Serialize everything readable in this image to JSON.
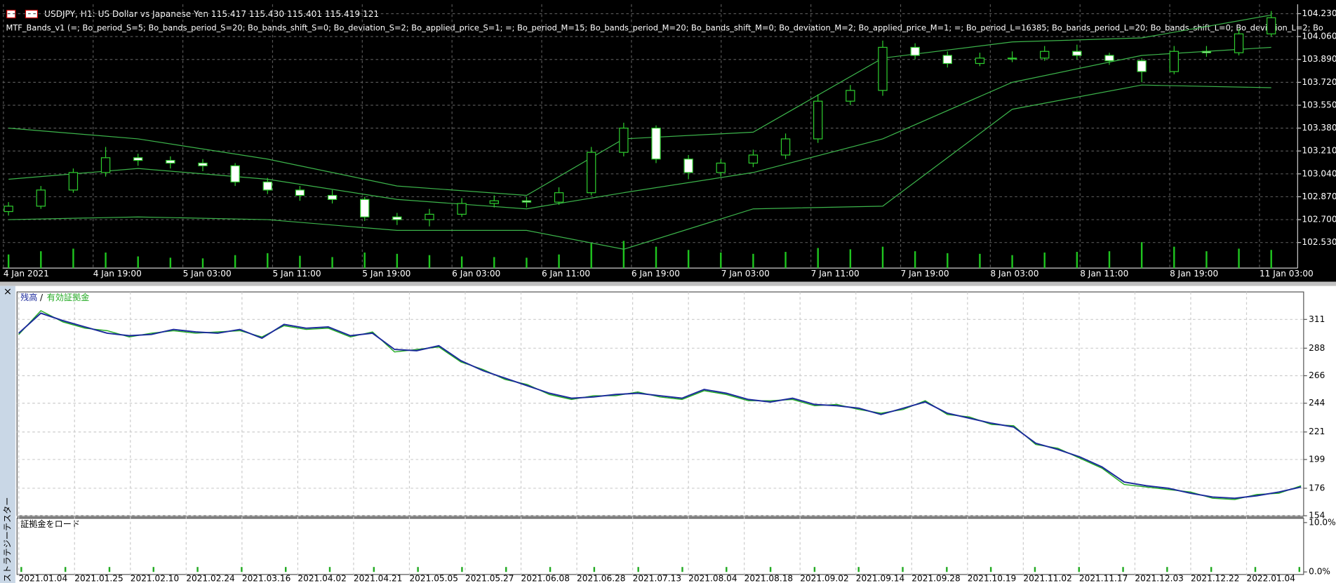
{
  "price_chart": {
    "type": "candlestick",
    "symbol_line": "USDJPY, H1:  US Dollar vs Japanese Yen  115.417 115.430 115.401 115.419  121",
    "indicator_line": "MTF_Bands_v1 (=; Bo_period_S=5; Bo_bands_period_S=20; Bo_bands_shift_S=0; Bo_deviation_S=2; Bo_applied_price_S=1; =; Bo_period_M=15; Bo_bands_period_M=20; Bo_bands_shift_M=0; Bo_deviation_M=2; Bo_applied_price_M=1; =; Bo_period_L=16385; Bo_bands_period_L=20; Bo_bands_shift_L=0; Bo_deviation_L=2; Bo",
    "x_labels": [
      "4 Jan 2021",
      "4 Jan 19:00",
      "5 Jan 03:00",
      "5 Jan 11:00",
      "5 Jan 19:00",
      "6 Jan 03:00",
      "6 Jan 11:00",
      "6 Jan 19:00",
      "7 Jan 03:00",
      "7 Jan 11:00",
      "7 Jan 19:00",
      "8 Jan 03:00",
      "8 Jan 11:00",
      "8 Jan 19:00",
      "11 Jan 03:00"
    ],
    "ylim": [
      102.34,
      104.3
    ],
    "yticks": [
      {
        "value": 104.23,
        "label": "104.230"
      },
      {
        "value": 104.06,
        "label": "104.060"
      },
      {
        "value": 103.89,
        "label": "103.890"
      },
      {
        "value": 103.72,
        "label": "103.720"
      },
      {
        "value": 103.55,
        "label": "103.550"
      },
      {
        "value": 103.38,
        "label": "103.380"
      },
      {
        "value": 103.21,
        "label": "103.210"
      },
      {
        "value": 103.04,
        "label": "103.040"
      },
      {
        "value": 102.87,
        "label": "102.870"
      },
      {
        "value": 102.7,
        "label": "102.700"
      },
      {
        "value": 102.53,
        "label": "102.530"
      }
    ],
    "grid": true,
    "candles": [
      [
        102.76,
        102.83,
        102.73,
        102.8
      ],
      [
        102.8,
        102.95,
        102.78,
        102.92
      ],
      [
        102.92,
        103.08,
        102.9,
        103.05
      ],
      [
        103.05,
        103.24,
        103.02,
        103.16
      ],
      [
        103.16,
        103.19,
        103.1,
        103.14
      ],
      [
        103.14,
        103.17,
        103.08,
        103.12
      ],
      [
        103.12,
        103.15,
        103.06,
        103.1
      ],
      [
        103.1,
        103.12,
        102.95,
        102.98
      ],
      [
        102.98,
        103.01,
        102.89,
        102.92
      ],
      [
        102.92,
        102.95,
        102.84,
        102.88
      ],
      [
        102.88,
        102.92,
        102.82,
        102.85
      ],
      [
        102.85,
        102.87,
        102.69,
        102.72
      ],
      [
        102.72,
        102.75,
        102.66,
        102.7
      ],
      [
        102.7,
        102.78,
        102.65,
        102.74
      ],
      [
        102.74,
        102.86,
        102.72,
        102.82
      ],
      [
        102.82,
        102.88,
        102.79,
        102.84
      ],
      [
        102.84,
        102.87,
        102.79,
        102.83
      ],
      [
        102.83,
        102.94,
        102.81,
        102.9
      ],
      [
        102.9,
        103.24,
        102.88,
        103.2
      ],
      [
        103.2,
        103.42,
        103.17,
        103.38
      ],
      [
        103.38,
        103.4,
        103.12,
        103.15
      ],
      [
        103.15,
        103.18,
        103.0,
        103.05
      ],
      [
        103.05,
        103.15,
        103.02,
        103.12
      ],
      [
        103.12,
        103.22,
        103.09,
        103.18
      ],
      [
        103.18,
        103.34,
        103.15,
        103.3
      ],
      [
        103.3,
        103.63,
        103.27,
        103.58
      ],
      [
        103.58,
        103.7,
        103.55,
        103.66
      ],
      [
        103.66,
        104.03,
        103.62,
        103.98
      ],
      [
        103.98,
        104.01,
        103.89,
        103.92
      ],
      [
        103.92,
        103.95,
        103.83,
        103.86
      ],
      [
        103.86,
        103.94,
        103.84,
        103.9
      ],
      [
        103.9,
        103.95,
        103.87,
        103.9
      ],
      [
        103.9,
        103.99,
        103.88,
        103.95
      ],
      [
        103.95,
        104.0,
        103.89,
        103.92
      ],
      [
        103.92,
        103.94,
        103.85,
        103.88
      ],
      [
        103.88,
        103.9,
        103.72,
        103.8
      ],
      [
        103.8,
        103.99,
        103.78,
        103.95
      ],
      [
        103.95,
        103.99,
        103.91,
        103.94
      ],
      [
        103.94,
        104.12,
        103.92,
        104.08
      ],
      [
        104.08,
        104.25,
        104.06,
        104.2
      ]
    ],
    "volume": [
      210,
      260,
      300,
      240,
      180,
      160,
      150,
      200,
      230,
      190,
      170,
      240,
      220,
      200,
      180,
      170,
      160,
      210,
      380,
      420,
      330,
      280,
      240,
      220,
      250,
      310,
      290,
      330,
      260,
      230,
      220,
      200,
      240,
      250,
      260,
      400,
      330,
      260,
      300,
      280
    ],
    "bands": {
      "x": [
        0,
        4,
        8,
        12,
        16,
        19,
        23,
        27,
        31,
        35,
        39
      ],
      "color": "#3cb44b",
      "upper": [
        103.38,
        103.3,
        103.15,
        102.95,
        102.88,
        103.3,
        103.35,
        103.9,
        104.02,
        104.05,
        104.22
      ],
      "middle": [
        103.0,
        103.08,
        103.0,
        102.85,
        102.78,
        102.9,
        103.05,
        103.3,
        103.72,
        103.92,
        103.98
      ],
      "lower": [
        102.7,
        102.72,
        102.7,
        102.62,
        102.62,
        102.48,
        102.78,
        102.8,
        103.52,
        103.7,
        103.68
      ]
    }
  },
  "tester": {
    "tab_title": "ストラテジーテスター",
    "close": "×",
    "equity_chart": {
      "type": "line",
      "x_labels": [
        "2021.01.04",
        "2021.01.25",
        "2021.02.10",
        "2021.02.24",
        "2021.03.16",
        "2021.04.02",
        "2021.04.21",
        "2021.05.05",
        "2021.05.27",
        "2021.06.08",
        "2021.06.28",
        "2021.07.13",
        "2021.08.04",
        "2021.08.18",
        "2021.09.02",
        "2021.09.14",
        "2021.09.28",
        "2021.10.19",
        "2021.11.02",
        "2021.11.17",
        "2021.12.03",
        "2021.12.22",
        "2022.01.04"
      ],
      "legend_separator": "/",
      "ylim": [
        154,
        333
      ],
      "yticks": [
        311,
        288,
        266,
        244,
        221,
        199,
        176,
        154
      ],
      "grid": true,
      "series": [
        {
          "name": "残高",
          "color": "#1b2a9c",
          "values": [
            300,
            316,
            310,
            305,
            300,
            298,
            299,
            303,
            301,
            300,
            303,
            296,
            307,
            304,
            305,
            298,
            300,
            287,
            286,
            290,
            278,
            270,
            264,
            258,
            252,
            248,
            249,
            251,
            252,
            250,
            248,
            255,
            252,
            247,
            245,
            248,
            243,
            242,
            240,
            235,
            240,
            245,
            236,
            232,
            228,
            225,
            212,
            207,
            201,
            193,
            181,
            178,
            176,
            172,
            169,
            168,
            170,
            173,
            177
          ]
        },
        {
          "name": "有効証拠金",
          "color": "#22aa22",
          "values": [
            299,
            318,
            309,
            304,
            302,
            297,
            300,
            302,
            300,
            301,
            302,
            297,
            306,
            303,
            304,
            297,
            301,
            285,
            287,
            289,
            277,
            271,
            263,
            259,
            251,
            247,
            250,
            250,
            253,
            249,
            247,
            254,
            251,
            246,
            246,
            247,
            242,
            243,
            239,
            236,
            239,
            246,
            235,
            233,
            227,
            226,
            211,
            208,
            200,
            192,
            179,
            177,
            175,
            173,
            168,
            167,
            171,
            172,
            178
          ]
        }
      ]
    },
    "load_chart": {
      "type": "bar",
      "title": "証拠金をロード",
      "color": "#22aa22",
      "ylim": [
        0,
        10
      ],
      "yticks": [
        {
          "value": 10,
          "label": "10.0%"
        },
        {
          "value": 0,
          "label": "0.0%"
        }
      ],
      "values": [
        1,
        1,
        1,
        1,
        1,
        1,
        1,
        1,
        1,
        1,
        1,
        1,
        1,
        1,
        1,
        1,
        1,
        1,
        1,
        1,
        1,
        1,
        1,
        1,
        1,
        1,
        1,
        1,
        1,
        1
      ]
    }
  }
}
